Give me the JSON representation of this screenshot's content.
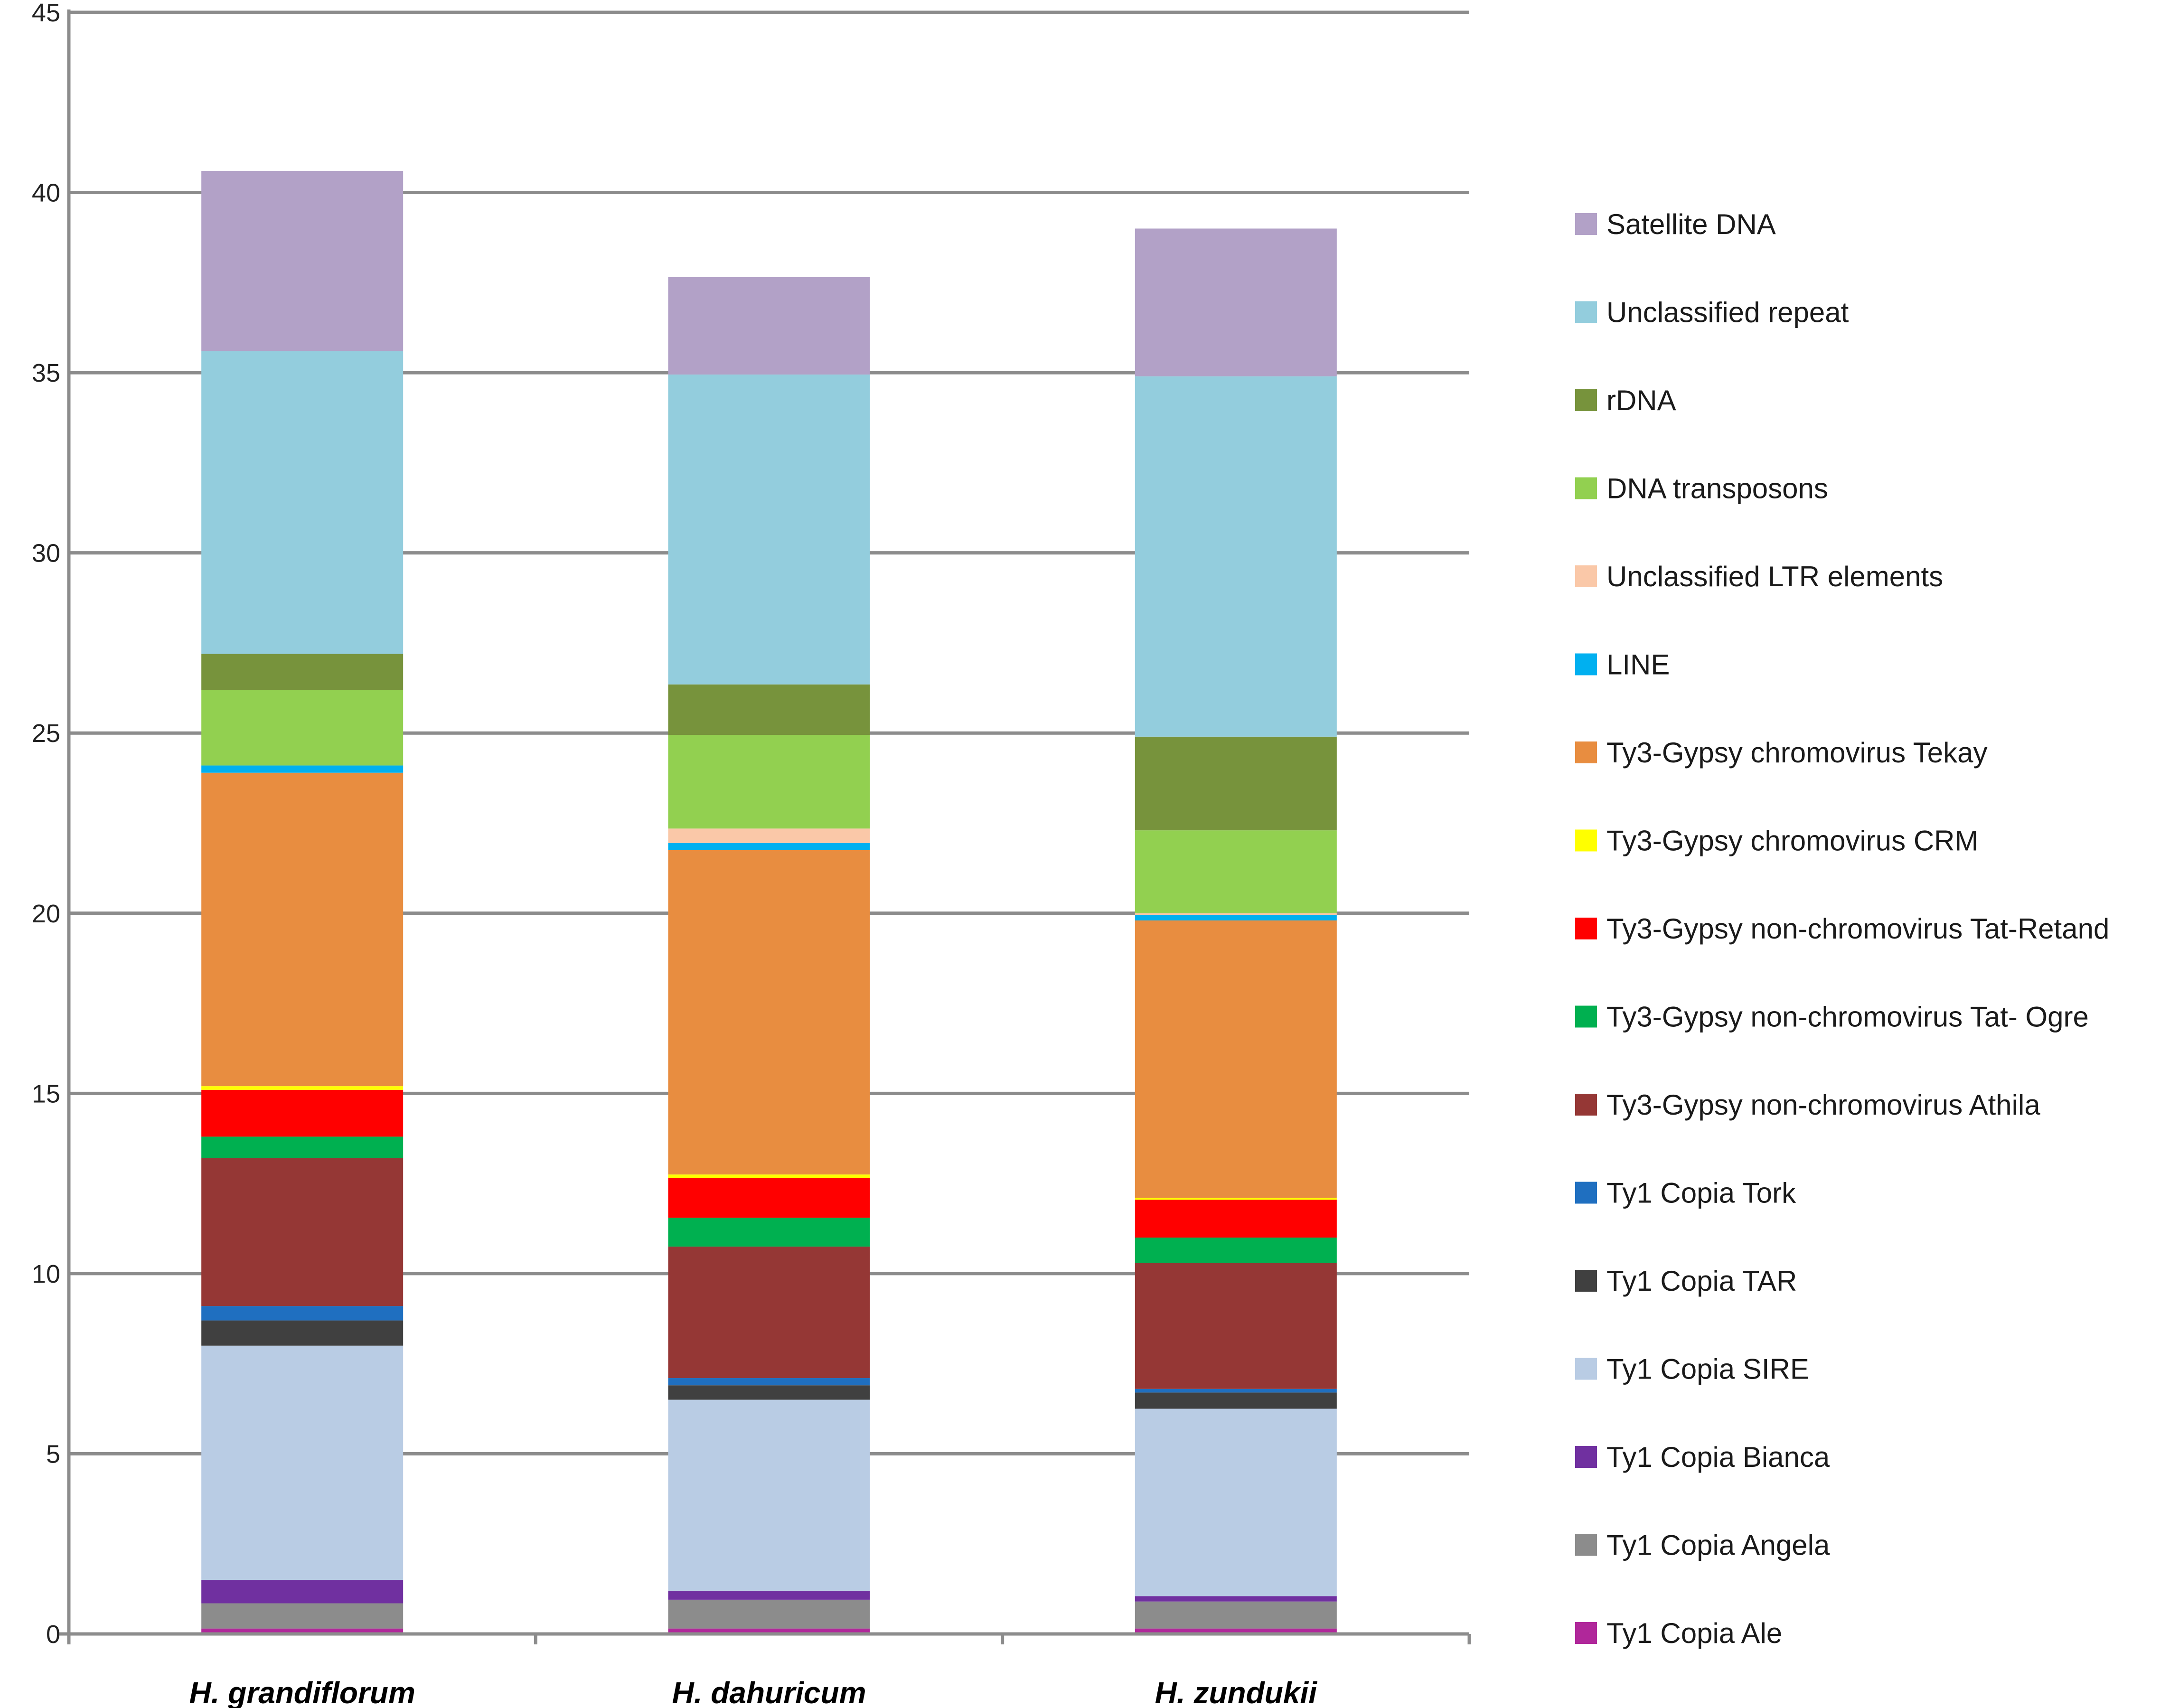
{
  "chart_data": {
    "type": "bar",
    "stacked": true,
    "title": "",
    "xlabel": "",
    "ylabel": "",
    "ylim": [
      0,
      45
    ],
    "yticks": [
      0,
      5,
      10,
      15,
      20,
      25,
      30,
      35,
      40,
      45
    ],
    "grid": true,
    "legend_position": "right",
    "categories": [
      "H. grandiflorum",
      "H. dahuricum",
      "H. zundukii"
    ],
    "series": [
      {
        "name": "Ty1 Copia Ale",
        "color": "#b0279a",
        "values": [
          0.15,
          0.15,
          0.15
        ]
      },
      {
        "name": "Ty1 Copia Angela",
        "color": "#8c8c8c",
        "values": [
          0.7,
          0.8,
          0.75
        ]
      },
      {
        "name": "Ty1 Copia Bianca",
        "color": "#7030a0",
        "values": [
          0.65,
          0.25,
          0.15
        ]
      },
      {
        "name": "Ty1 Copia SIRE",
        "color": "#b9cce4",
        "values": [
          6.5,
          5.3,
          5.2
        ]
      },
      {
        "name": "Ty1 Copia TAR",
        "color": "#404040",
        "values": [
          0.7,
          0.4,
          0.45
        ]
      },
      {
        "name": "Ty1 Copia Tork",
        "color": "#1f6fc0",
        "values": [
          0.4,
          0.2,
          0.1
        ]
      },
      {
        "name": "Ty3-Gypsy non-chromovirus Athila",
        "color": "#953735",
        "values": [
          4.1,
          3.65,
          3.5
        ]
      },
      {
        "name": "Ty3-Gypsy non-chromovirus Tat- Ogre",
        "color": "#00b050",
        "values": [
          0.6,
          0.8,
          0.7
        ]
      },
      {
        "name": "Ty3-Gypsy non-chromovirus Tat-Retand",
        "color": "#ff0000",
        "values": [
          1.3,
          1.1,
          1.05
        ]
      },
      {
        "name": "Ty3-Gypsy chromovirus CRM",
        "color": "#ffff00",
        "values": [
          0.1,
          0.1,
          0.05
        ]
      },
      {
        "name": "Ty3-Gypsy chromovirus Tekay",
        "color": "#e88d40",
        "values": [
          8.7,
          9.0,
          7.7
        ]
      },
      {
        "name": "LINE",
        "color": "#00b0f0",
        "values": [
          0.2,
          0.2,
          0.15
        ]
      },
      {
        "name": "Unclassified LTR elements",
        "color": "#fac8a8",
        "values": [
          0.0,
          0.4,
          0.05
        ]
      },
      {
        "name": "DNA transposons",
        "color": "#92d050",
        "values": [
          2.1,
          2.6,
          2.3
        ]
      },
      {
        "name": "rDNA",
        "color": "#77933c",
        "values": [
          1.0,
          1.4,
          2.6
        ]
      },
      {
        "name": "Unclassified repeat",
        "color": "#93cddd",
        "values": [
          8.4,
          8.6,
          10.0
        ]
      },
      {
        "name": "Satellite DNA",
        "color": "#b2a1c7",
        "values": [
          5.0,
          2.7,
          4.1
        ]
      }
    ]
  }
}
